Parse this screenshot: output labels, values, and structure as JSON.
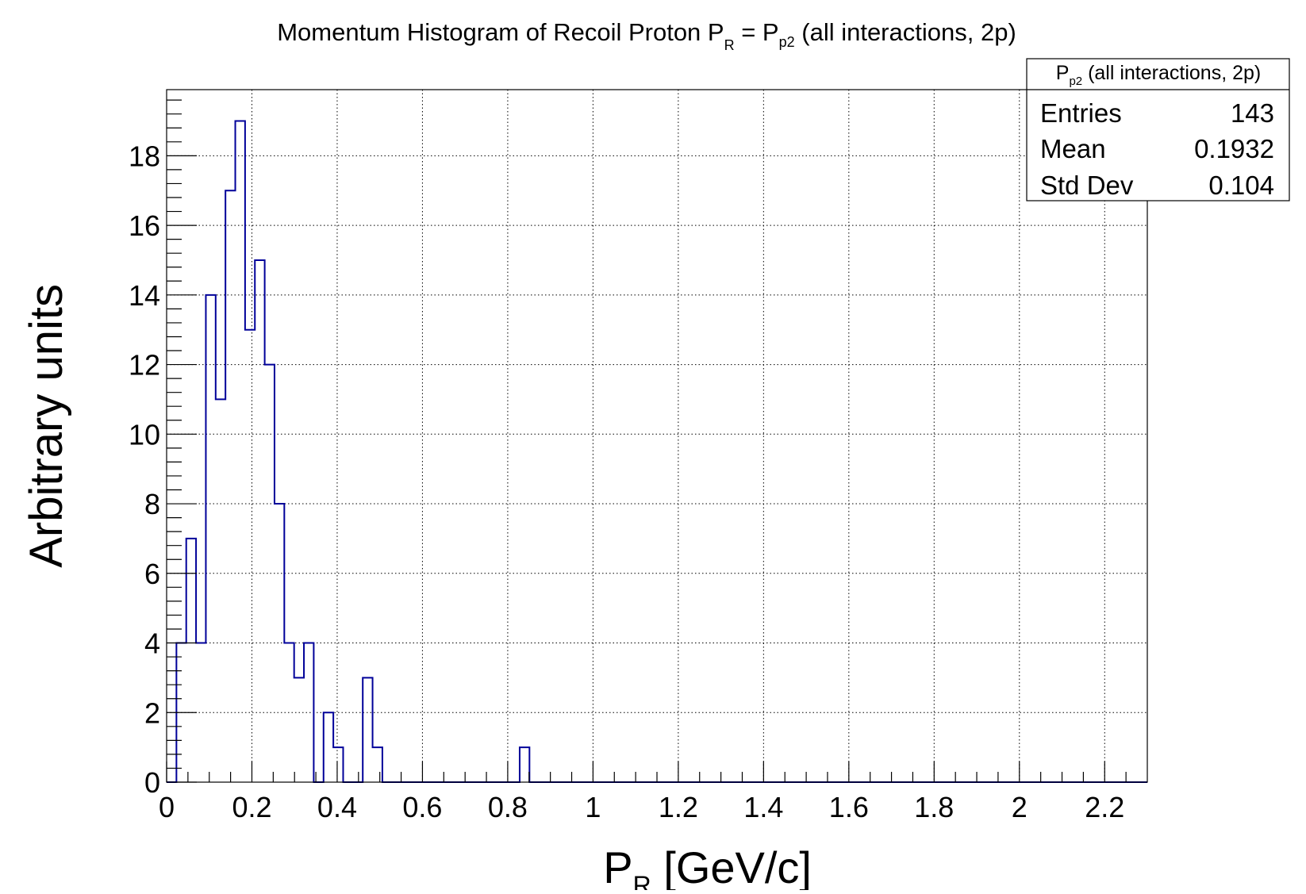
{
  "chart_data": {
    "type": "bar",
    "title": {
      "main": "Momentum Histogram of Recoil Proton P",
      "sub1": "R",
      "mid": " = P",
      "sub2": "p2",
      "tail": " (all interactions, 2p)"
    },
    "xlabel": {
      "main": "P",
      "sub": "R",
      "tail": " [GeV/c]"
    },
    "ylabel": "Arbitrary units",
    "xlim": [
      0,
      2.3
    ],
    "ylim": [
      0,
      19.9
    ],
    "x_ticks": [
      "0",
      "0.2",
      "0.4",
      "0.6",
      "0.8",
      "1",
      "1.2",
      "1.4",
      "1.6",
      "1.8",
      "2",
      "2.2"
    ],
    "x_tick_values": [
      0,
      0.2,
      0.4,
      0.6,
      0.8,
      1.0,
      1.2,
      1.4,
      1.6,
      1.8,
      2.0,
      2.2
    ],
    "y_ticks": [
      "0",
      "2",
      "4",
      "6",
      "8",
      "10",
      "12",
      "14",
      "16",
      "18"
    ],
    "y_tick_values": [
      0,
      2,
      4,
      6,
      8,
      10,
      12,
      14,
      16,
      18
    ],
    "grid": true,
    "line_color": "#000099",
    "bin_edges_start": 0.0,
    "bin_width": 0.023,
    "values": [
      0,
      4,
      7,
      4,
      14,
      11,
      17,
      19,
      13,
      15,
      12,
      8,
      4,
      3,
      4,
      0,
      2,
      1,
      0,
      0,
      3,
      1,
      0,
      0,
      0,
      0,
      0,
      0,
      0,
      0,
      0,
      0,
      0,
      0,
      0,
      0,
      1,
      0,
      0,
      0,
      0,
      0,
      0,
      0,
      0,
      0,
      0,
      0,
      0,
      0,
      0,
      0,
      0,
      0,
      0,
      0,
      0,
      0,
      0,
      0,
      0,
      0,
      0,
      0,
      0,
      0,
      0,
      0,
      0,
      0,
      0,
      0,
      0,
      0,
      0,
      0,
      0,
      0,
      0,
      0,
      0,
      0,
      0,
      0,
      0,
      0,
      0,
      0,
      0,
      0,
      0,
      0,
      0,
      0,
      0,
      0,
      0,
      0,
      0,
      0
    ],
    "stats_box": {
      "title_main": "P",
      "title_sub": "p2",
      "title_tail": " (all interactions, 2p)",
      "rows": [
        {
          "label": "Entries",
          "value": "143"
        },
        {
          "label": "Mean",
          "value": "0.1932"
        },
        {
          "label": "Std Dev",
          "value": "0.104"
        }
      ]
    }
  }
}
